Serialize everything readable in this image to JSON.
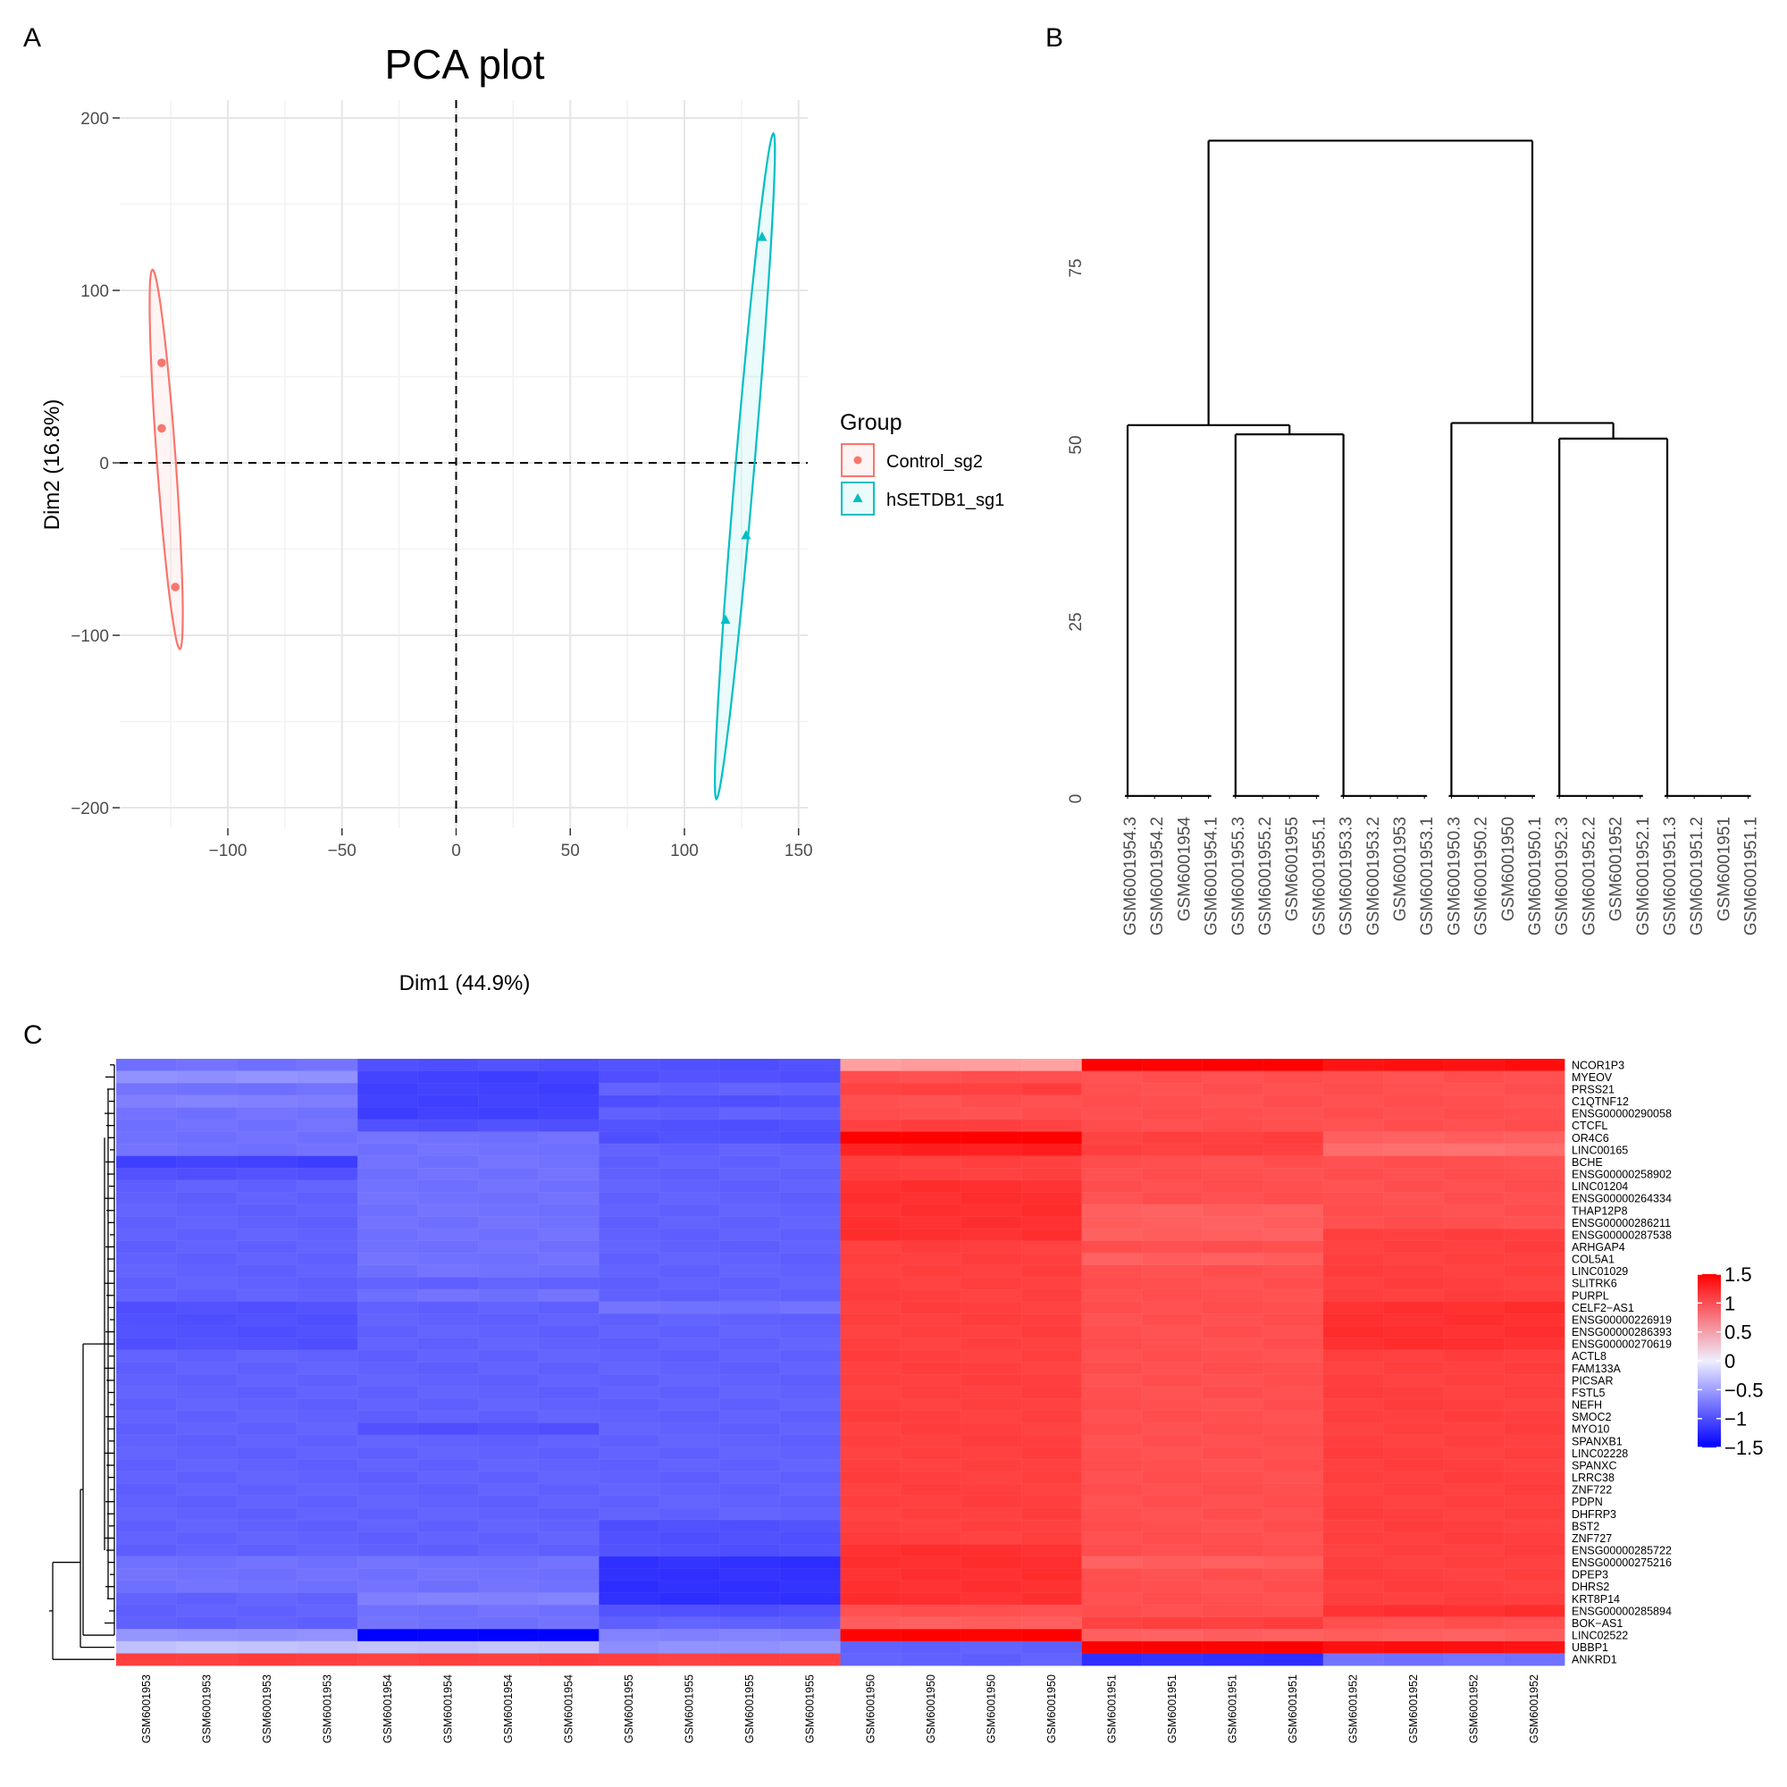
{
  "panels": {
    "a": "A",
    "b": "B",
    "c": "C"
  },
  "chart_data": [
    {
      "type": "scatter",
      "title": "PCA plot",
      "xlabel": "Dim1 (44.9%)",
      "ylabel": "Dim2 (16.8%)",
      "xlim": [
        -140,
        152
      ],
      "ylim": [
        -210,
        210
      ],
      "xticks": [
        -100,
        -50,
        0,
        50,
        100,
        150
      ],
      "xtick_labels": [
        "−100",
        "−50",
        "0",
        "50",
        "100",
        "150"
      ],
      "yticks": [
        -200,
        -100,
        0,
        100,
        200
      ],
      "ytick_labels": [
        "−200",
        "−100",
        "0",
        "100",
        "200"
      ],
      "grid": true,
      "reference_lines": {
        "x": 0,
        "y": 0,
        "style": "dashed"
      },
      "legend": {
        "title": "Group",
        "placement": "right"
      },
      "series": [
        {
          "name": "Control_sg2",
          "color": "#F8766D",
          "marker": "circle",
          "points": [
            [
              -129,
              58
            ],
            [
              -129,
              20
            ],
            [
              -123,
              -72
            ]
          ],
          "ellipse": [
            [
              -133,
              112
            ],
            [
              -128,
              60
            ],
            [
              -122,
              -10
            ],
            [
              -121,
              -108
            ]
          ]
        },
        {
          "name": "hSETDB1_sg1",
          "color": "#00BFC4",
          "marker": "triangle",
          "points": [
            [
              134,
              131
            ],
            [
              127,
              -42
            ],
            [
              118,
              -91
            ]
          ],
          "ellipse": [
            [
              139,
              191
            ],
            [
              133,
              100
            ],
            [
              124,
              -60
            ],
            [
              114,
              -195
            ]
          ]
        }
      ]
    },
    {
      "type": "dendrogram",
      "ylim": [
        0,
        95
      ],
      "yticks": [
        0,
        25,
        50,
        75
      ],
      "leaves": [
        "GSM6001954.3",
        "GSM6001954.2",
        "GSM6001954",
        "GSM6001954.1",
        "GSM6001955.3",
        "GSM6001955.2",
        "GSM6001955",
        "GSM6001955.1",
        "GSM6001953.3",
        "GSM6001953.2",
        "GSM6001953",
        "GSM6001953.1",
        "GSM6001950.3",
        "GSM6001950.2",
        "GSM6001950",
        "GSM6001950.1",
        "GSM6001952.3",
        "GSM6001952.2",
        "GSM6001952",
        "GSM6001952.1",
        "GSM6001951.3",
        "GSM6001951.2",
        "GSM6001951",
        "GSM6001951.1"
      ],
      "merges": [
        {
          "left": [
            0,
            3
          ],
          "right": null,
          "height": 0.4,
          "span": [
            0,
            3
          ]
        },
        {
          "span": [
            4,
            7
          ],
          "height": 0.4
        },
        {
          "span": [
            8,
            11
          ],
          "height": 0.4
        },
        {
          "span": [
            12,
            15
          ],
          "height": 0.4
        },
        {
          "span": [
            16,
            19
          ],
          "height": 0.4
        },
        {
          "span": [
            20,
            23
          ],
          "height": 0.4
        },
        {
          "children": [
            1,
            2
          ],
          "height": 51.5
        },
        {
          "children": [
            0,
            6
          ],
          "height": 52.8
        },
        {
          "children": [
            4,
            5
          ],
          "height": 50.9
        },
        {
          "children": [
            3,
            8
          ],
          "height": 53.1
        },
        {
          "children": [
            7,
            9
          ],
          "height": 93
        }
      ]
    },
    {
      "type": "heatmap",
      "columns": [
        "GSM6001953",
        "GSM6001953",
        "GSM6001953",
        "GSM6001953",
        "GSM6001954",
        "GSM6001954",
        "GSM6001954",
        "GSM6001954",
        "GSM6001955",
        "GSM6001955",
        "GSM6001955",
        "GSM6001955",
        "GSM6001950",
        "GSM6001950",
        "GSM6001950",
        "GSM6001950",
        "GSM6001951",
        "GSM6001951",
        "GSM6001951",
        "GSM6001951",
        "GSM6001952",
        "GSM6001952",
        "GSM6001952",
        "GSM6001952"
      ],
      "rows": [
        "NCOR1P3",
        "MYEOV",
        "PRSS21",
        "C1QTNF12",
        "ENSG00000290058",
        "CTCFL",
        "OR4C6",
        "LINC00165",
        "BCHE",
        "ENSG00000258902",
        "LINC01204",
        "ENSG00000264334",
        "THAP12P8",
        "ENSG00000286211",
        "ENSG00000287538",
        "ARHGAP4",
        "COL5A1",
        "LINC01029",
        "SLITRK6",
        "PURPL",
        "CELF2−AS1",
        "ENSG00000226919",
        "ENSG00000286393",
        "ENSG00000270619",
        "ACTL8",
        "FAM133A",
        "PICSAR",
        "FSTL5",
        "NEFH",
        "SMOC2",
        "MYO10",
        "SPANXB1",
        "LINC02228",
        "SPANXC",
        "LRRC38",
        "ZNF722",
        "PDPN",
        "DHFRP3",
        "BST2",
        "ZNF727",
        "ENSG00000285722",
        "ENSG00000275216",
        "DPEP3",
        "DHRS2",
        "KRT8P14",
        "ENSG00000285894",
        "BOK−AS1",
        "LINC02522",
        "UBBP1",
        "ANKRD1"
      ],
      "group_values": [
        [
          -0.8,
          -1.0,
          -1.0,
          0.5,
          1.5,
          1.4
        ],
        [
          -0.6,
          -1.1,
          -1.0,
          1.0,
          1.0,
          1.0
        ],
        [
          -0.8,
          -1.1,
          -0.9,
          1.1,
          1.0,
          1.0
        ],
        [
          -0.7,
          -1.1,
          -1.0,
          1.0,
          1.0,
          1.0
        ],
        [
          -0.8,
          -1.1,
          -0.9,
          1.0,
          1.0,
          1.0
        ],
        [
          -0.8,
          -1.0,
          -1.0,
          1.1,
          1.0,
          1.0
        ],
        [
          -0.8,
          -0.8,
          -1.0,
          1.5,
          1.1,
          0.9
        ],
        [
          -0.8,
          -0.8,
          -0.9,
          1.3,
          1.1,
          0.8
        ],
        [
          -1.1,
          -0.8,
          -0.9,
          1.1,
          1.0,
          1.0
        ],
        [
          -1.0,
          -0.8,
          -0.9,
          1.1,
          1.0,
          1.0
        ],
        [
          -0.9,
          -0.8,
          -0.9,
          1.2,
          1.0,
          1.0
        ],
        [
          -0.9,
          -0.8,
          -0.9,
          1.2,
          1.0,
          1.0
        ],
        [
          -0.9,
          -0.8,
          -0.9,
          1.2,
          0.9,
          1.0
        ],
        [
          -0.9,
          -0.8,
          -0.9,
          1.2,
          0.9,
          1.0
        ],
        [
          -0.9,
          -0.8,
          -0.9,
          1.2,
          0.9,
          1.1
        ],
        [
          -0.9,
          -0.8,
          -0.9,
          1.1,
          1.0,
          1.1
        ],
        [
          -0.9,
          -0.8,
          -0.9,
          1.1,
          0.9,
          1.1
        ],
        [
          -0.9,
          -0.8,
          -0.9,
          1.1,
          1.0,
          1.1
        ],
        [
          -0.9,
          -0.9,
          -0.9,
          1.1,
          1.0,
          1.1
        ],
        [
          -0.9,
          -0.8,
          -0.9,
          1.1,
          1.0,
          1.1
        ],
        [
          -1.0,
          -0.9,
          -0.8,
          1.1,
          1.0,
          1.2
        ],
        [
          -1.0,
          -0.9,
          -0.9,
          1.1,
          1.0,
          1.2
        ],
        [
          -1.0,
          -0.9,
          -0.9,
          1.1,
          1.0,
          1.2
        ],
        [
          -1.0,
          -0.9,
          -0.9,
          1.1,
          1.0,
          1.2
        ],
        [
          -0.9,
          -0.9,
          -0.9,
          1.1,
          1.0,
          1.1
        ],
        [
          -0.9,
          -0.9,
          -0.9,
          1.1,
          1.0,
          1.1
        ],
        [
          -0.9,
          -0.9,
          -0.9,
          1.1,
          1.0,
          1.1
        ],
        [
          -0.9,
          -0.9,
          -0.9,
          1.1,
          1.0,
          1.1
        ],
        [
          -0.9,
          -0.9,
          -0.9,
          1.1,
          1.0,
          1.1
        ],
        [
          -0.9,
          -0.9,
          -0.9,
          1.1,
          1.0,
          1.1
        ],
        [
          -0.9,
          -1.0,
          -0.9,
          1.1,
          1.0,
          1.1
        ],
        [
          -0.9,
          -0.9,
          -0.9,
          1.1,
          1.0,
          1.1
        ],
        [
          -0.9,
          -0.9,
          -0.9,
          1.1,
          1.0,
          1.1
        ],
        [
          -0.9,
          -0.9,
          -0.9,
          1.1,
          1.0,
          1.1
        ],
        [
          -0.9,
          -0.9,
          -0.9,
          1.1,
          1.0,
          1.1
        ],
        [
          -0.9,
          -0.9,
          -0.9,
          1.1,
          1.0,
          1.1
        ],
        [
          -0.9,
          -0.9,
          -0.9,
          1.1,
          1.0,
          1.1
        ],
        [
          -0.9,
          -0.9,
          -0.9,
          1.1,
          1.0,
          1.1
        ],
        [
          -0.9,
          -0.9,
          -1.0,
          1.1,
          1.0,
          1.1
        ],
        [
          -0.9,
          -0.9,
          -1.0,
          1.1,
          1.0,
          1.1
        ],
        [
          -0.9,
          -0.9,
          -1.0,
          1.2,
          1.0,
          1.1
        ],
        [
          -0.8,
          -0.8,
          -1.2,
          1.2,
          0.9,
          1.1
        ],
        [
          -0.8,
          -0.8,
          -1.2,
          1.2,
          1.0,
          1.1
        ],
        [
          -0.8,
          -0.8,
          -1.2,
          1.2,
          1.0,
          1.1
        ],
        [
          -0.9,
          -0.7,
          -1.2,
          1.2,
          1.0,
          1.1
        ],
        [
          -0.9,
          -0.8,
          -1.0,
          1.0,
          1.0,
          1.2
        ],
        [
          -0.9,
          -0.8,
          -0.9,
          0.9,
          1.1,
          1.0
        ],
        [
          -0.6,
          -1.5,
          -0.7,
          1.5,
          0.9,
          0.9
        ],
        [
          -0.3,
          -0.3,
          -0.6,
          -0.9,
          1.5,
          1.4
        ],
        [
          1.1,
          1.1,
          1.1,
          -0.9,
          -1.2,
          -0.8
        ]
      ],
      "colorbar": {
        "ticks": [
          1.5,
          1,
          0.5,
          0,
          -0.5,
          -1,
          -1.5
        ],
        "tick_labels": [
          "1.5",
          "1",
          "0.5",
          "0",
          "−0.5",
          "−1",
          "−1.5"
        ],
        "range": [
          -1.5,
          1.5
        ],
        "colors": {
          "low": "#0000FF",
          "mid": "#FFFFFF",
          "high": "#FF0000"
        }
      }
    }
  ]
}
